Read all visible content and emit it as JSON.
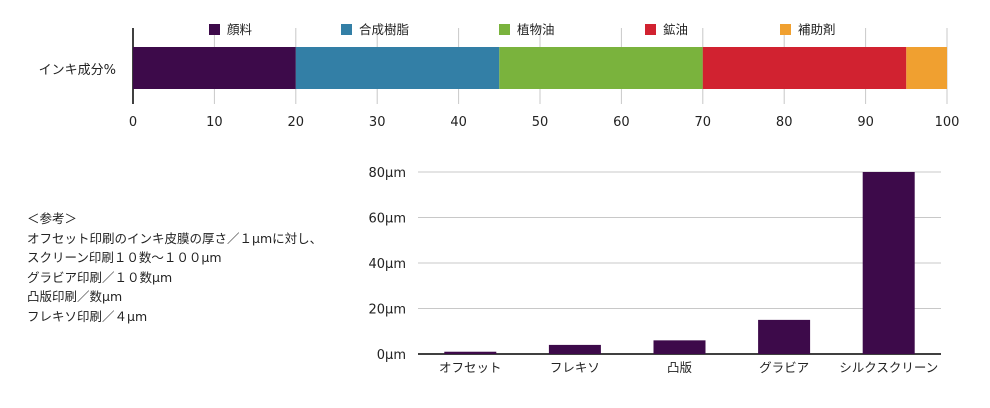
{
  "chart_data": [
    {
      "type": "bar",
      "orientation": "horizontal",
      "stacked": true,
      "categories": [
        "インキ成分%"
      ],
      "series": [
        {
          "name": "顔料",
          "values": [
            20
          ],
          "color": "#3d0a4a"
        },
        {
          "name": "合成樹脂",
          "values": [
            25
          ],
          "color": "#337fa6"
        },
        {
          "name": "植物油",
          "values": [
            25
          ],
          "color": "#7ab33d"
        },
        {
          "name": "鉱油",
          "values": [
            25
          ],
          "color": "#d12230"
        },
        {
          "name": "補助剤",
          "values": [
            5
          ],
          "color": "#f0a030"
        }
      ],
      "xlim": [
        0,
        100
      ],
      "xticks": [
        "0",
        "10",
        "20",
        "30",
        "40",
        "50",
        "60",
        "70",
        "80",
        "90",
        "100"
      ],
      "grid": true,
      "legend": "top"
    },
    {
      "type": "bar",
      "categories": [
        "オフセット",
        "フレキソ",
        "凸版",
        "グラビア",
        "シルクスクリーン"
      ],
      "values": [
        1,
        4,
        6,
        15,
        80
      ],
      "color": "#3d0a4a",
      "ylim": [
        0,
        80
      ],
      "yticks": [
        "0μm",
        "20μm",
        "40μm",
        "60μm",
        "80μm"
      ],
      "grid": true
    }
  ],
  "note": {
    "lines": [
      "＜参考＞",
      "オフセット印刷のインキ皮膜の厚さ／１μmに対し、",
      "スクリーン印刷１０数〜１００μm",
      "グラビア印刷／１０数μm",
      "凸版印刷／数μm",
      "フレキソ印刷／４μm"
    ]
  }
}
